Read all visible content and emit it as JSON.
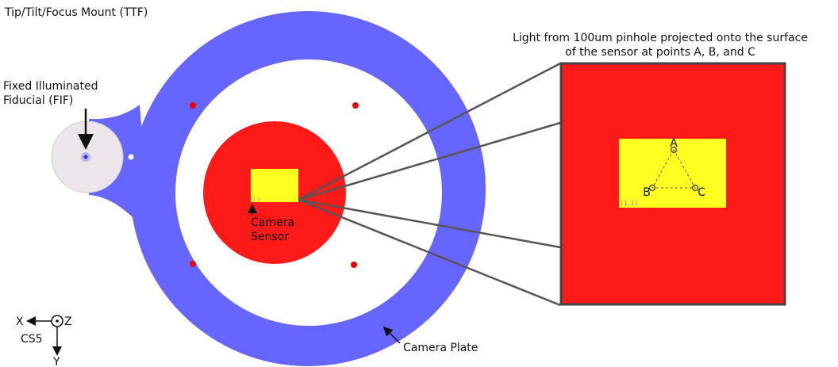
{
  "title": "Tip/Tilt/Focus Mount (TTF)",
  "labels": {
    "fif": [
      "Fixed Illuminated",
      "Fiducial (FIF)"
    ],
    "sensor": [
      "Camera",
      "Sensor"
    ],
    "plate": "Camera Plate",
    "caption": [
      "Light from 100um pinhole projected onto the surface",
      "of the sensor at points A, B, and C"
    ]
  },
  "points": [
    "A",
    "B",
    "C"
  ],
  "origin_label": "(1,1)",
  "axes": {
    "x": "X",
    "z": "Z",
    "name": "CS5",
    "y": "Y"
  }
}
